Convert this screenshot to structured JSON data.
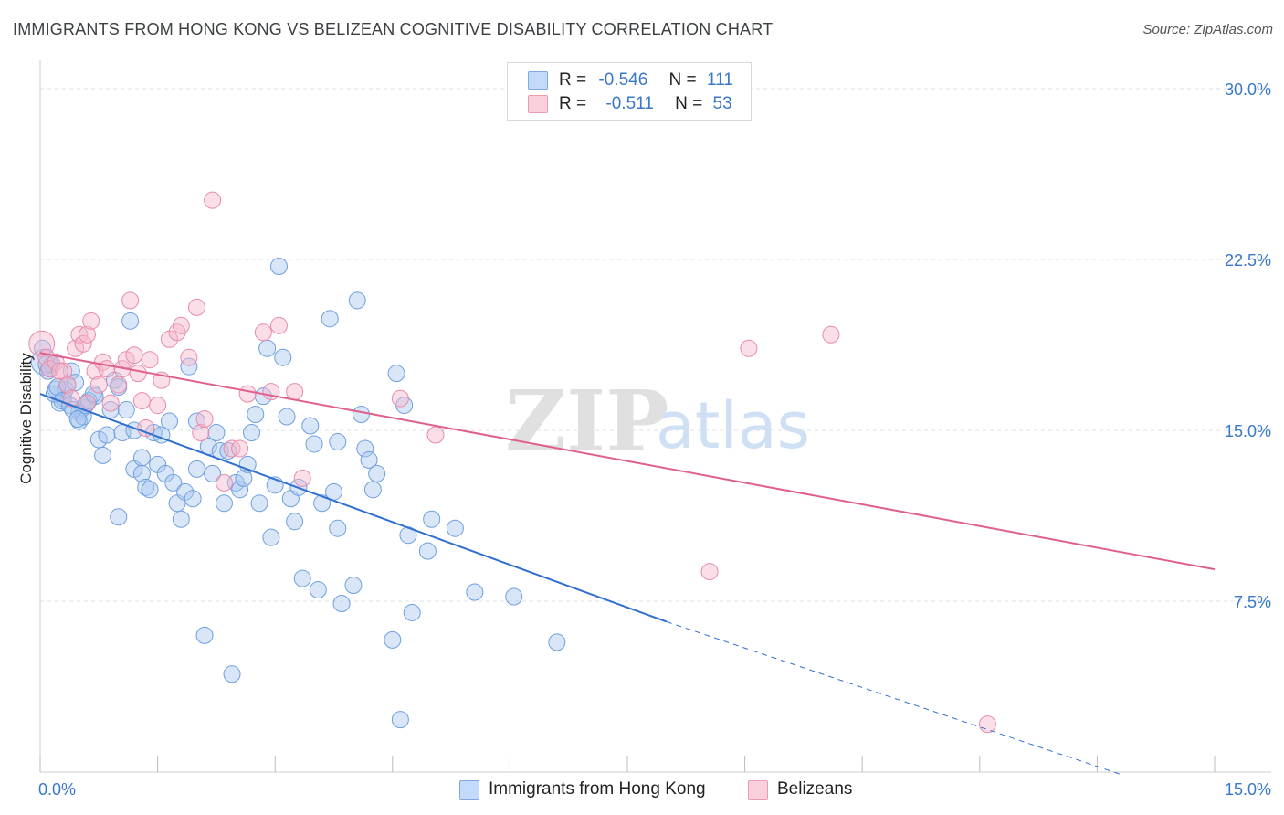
{
  "title": "IMMIGRANTS FROM HONG KONG VS BELIZEAN COGNITIVE DISABILITY CORRELATION CHART",
  "source": "Source: ZipAtlas.com",
  "watermark": {
    "zip": "ZIP",
    "atlas": "atlas"
  },
  "legend": {
    "rows": [
      {
        "r_label": "R =",
        "r_value": "-0.546",
        "n_label": "N =",
        "n_value": "111",
        "color": "#a9c8f0"
      },
      {
        "r_label": "R =",
        "r_value": "-0.511",
        "n_label": "N =",
        "n_value": "53",
        "color": "#f5b8cb"
      }
    ]
  },
  "bottom_legend": {
    "series1": "Immigrants from Hong Kong",
    "series2": "Belizeans"
  },
  "chart_data": {
    "type": "scatter",
    "title": "IMMIGRANTS FROM HONG KONG VS BELIZEAN COGNITIVE DISABILITY CORRELATION CHART",
    "xlabel": "",
    "ylabel": "Cognitive Disability",
    "xlim": [
      0,
      15
    ],
    "ylim": [
      0,
      30
    ],
    "x_tick_labels": [
      "0.0%",
      "15.0%"
    ],
    "y_tick_labels": [
      "7.5%",
      "15.0%",
      "22.5%",
      "30.0%"
    ],
    "y_ticks": [
      7.5,
      15.0,
      22.5,
      30.0
    ],
    "grid": true,
    "legend_position": "top-center",
    "colors": {
      "blue": "#4a86d8",
      "blue_fill": "#a9c8f0",
      "pink": "#e56b96",
      "pink_fill": "#f5b8cb"
    },
    "series": [
      {
        "name": "Immigrants from Hong Kong",
        "color": "#4a86d8",
        "trend": {
          "x": [
            0,
            8.0
          ],
          "y": [
            16.6,
            6.6
          ],
          "dashed_to": [
            13.8,
            -0.1
          ]
        },
        "points": [
          [
            0.05,
            18.0
          ],
          [
            0.1,
            17.6
          ],
          [
            0.15,
            17.9
          ],
          [
            0.2,
            16.8
          ],
          [
            0.25,
            16.2
          ],
          [
            0.3,
            16.4
          ],
          [
            0.32,
            16.8
          ],
          [
            0.35,
            17.0
          ],
          [
            0.4,
            17.6
          ],
          [
            0.45,
            17.1
          ],
          [
            0.5,
            15.8
          ],
          [
            0.5,
            15.4
          ],
          [
            0.55,
            16.0
          ],
          [
            0.55,
            15.6
          ],
          [
            0.6,
            16.2
          ],
          [
            0.7,
            16.5
          ],
          [
            0.75,
            14.6
          ],
          [
            0.8,
            13.9
          ],
          [
            0.85,
            14.8
          ],
          [
            0.9,
            15.9
          ],
          [
            0.95,
            17.2
          ],
          [
            1.0,
            16.9
          ],
          [
            1.0,
            11.2
          ],
          [
            1.05,
            14.9
          ],
          [
            1.1,
            15.9
          ],
          [
            1.15,
            19.8
          ],
          [
            1.2,
            13.3
          ],
          [
            1.2,
            15.0
          ],
          [
            1.3,
            13.1
          ],
          [
            1.3,
            13.8
          ],
          [
            1.35,
            12.5
          ],
          [
            1.4,
            12.4
          ],
          [
            1.45,
            14.9
          ],
          [
            1.5,
            13.5
          ],
          [
            1.55,
            14.8
          ],
          [
            1.6,
            13.1
          ],
          [
            1.65,
            15.4
          ],
          [
            1.7,
            12.7
          ],
          [
            1.75,
            11.8
          ],
          [
            1.8,
            11.1
          ],
          [
            1.85,
            12.3
          ],
          [
            1.9,
            17.8
          ],
          [
            1.95,
            12.0
          ],
          [
            2.0,
            15.4
          ],
          [
            2.0,
            13.3
          ],
          [
            2.1,
            6.0
          ],
          [
            2.15,
            14.3
          ],
          [
            2.2,
            13.1
          ],
          [
            2.25,
            14.9
          ],
          [
            2.3,
            14.1
          ],
          [
            2.35,
            11.8
          ],
          [
            2.4,
            14.1
          ],
          [
            2.45,
            4.3
          ],
          [
            2.5,
            12.7
          ],
          [
            2.55,
            12.4
          ],
          [
            2.6,
            12.9
          ],
          [
            2.65,
            13.5
          ],
          [
            2.7,
            14.9
          ],
          [
            2.75,
            15.7
          ],
          [
            2.8,
            11.8
          ],
          [
            2.85,
            16.5
          ],
          [
            2.9,
            18.6
          ],
          [
            2.95,
            10.3
          ],
          [
            3.0,
            12.6
          ],
          [
            3.05,
            22.2
          ],
          [
            3.1,
            18.2
          ],
          [
            3.15,
            15.6
          ],
          [
            3.2,
            12.0
          ],
          [
            3.25,
            11.0
          ],
          [
            3.3,
            12.5
          ],
          [
            3.35,
            8.5
          ],
          [
            3.45,
            15.2
          ],
          [
            3.5,
            14.4
          ],
          [
            3.55,
            8.0
          ],
          [
            3.6,
            11.8
          ],
          [
            3.7,
            19.9
          ],
          [
            3.75,
            12.3
          ],
          [
            3.8,
            14.5
          ],
          [
            3.8,
            10.7
          ],
          [
            3.85,
            7.4
          ],
          [
            4.0,
            8.2
          ],
          [
            4.05,
            20.7
          ],
          [
            4.1,
            15.7
          ],
          [
            4.15,
            14.2
          ],
          [
            4.2,
            13.7
          ],
          [
            4.25,
            12.4
          ],
          [
            4.3,
            13.1
          ],
          [
            4.5,
            5.8
          ],
          [
            4.55,
            17.5
          ],
          [
            4.6,
            2.3
          ],
          [
            4.65,
            16.1
          ],
          [
            4.7,
            10.4
          ],
          [
            4.75,
            7.0
          ],
          [
            4.95,
            9.7
          ],
          [
            5.0,
            11.1
          ],
          [
            5.3,
            10.7
          ],
          [
            5.55,
            7.9
          ],
          [
            6.05,
            7.7
          ],
          [
            6.6,
            5.7
          ],
          [
            0.03,
            18.6
          ],
          [
            0.08,
            17.9
          ],
          [
            0.12,
            17.7
          ],
          [
            0.18,
            16.6
          ],
          [
            0.22,
            16.9
          ],
          [
            0.28,
            16.3
          ],
          [
            0.38,
            16.1
          ],
          [
            0.42,
            15.9
          ],
          [
            0.48,
            15.5
          ],
          [
            0.58,
            16.1
          ],
          [
            0.62,
            16.3
          ],
          [
            0.68,
            16.6
          ]
        ]
      },
      {
        "name": "Belizeans",
        "color": "#e56b96",
        "trend": {
          "x": [
            0,
            15
          ],
          "y": [
            18.4,
            8.9
          ]
        },
        "points": [
          [
            0.02,
            18.8
          ],
          [
            0.08,
            18.2
          ],
          [
            0.12,
            17.7
          ],
          [
            0.2,
            18.0
          ],
          [
            0.3,
            17.6
          ],
          [
            0.35,
            17.0
          ],
          [
            0.4,
            16.4
          ],
          [
            0.45,
            18.6
          ],
          [
            0.5,
            19.2
          ],
          [
            0.55,
            18.8
          ],
          [
            0.6,
            16.2
          ],
          [
            0.7,
            17.6
          ],
          [
            0.75,
            17.0
          ],
          [
            0.8,
            18.0
          ],
          [
            0.85,
            17.7
          ],
          [
            0.9,
            16.2
          ],
          [
            1.0,
            17.0
          ],
          [
            1.05,
            17.7
          ],
          [
            1.1,
            18.1
          ],
          [
            1.2,
            18.3
          ],
          [
            1.25,
            17.5
          ],
          [
            1.3,
            16.3
          ],
          [
            1.35,
            15.1
          ],
          [
            1.4,
            18.1
          ],
          [
            1.5,
            16.1
          ],
          [
            1.55,
            17.2
          ],
          [
            1.65,
            19.0
          ],
          [
            1.75,
            19.3
          ],
          [
            1.8,
            19.6
          ],
          [
            1.9,
            18.2
          ],
          [
            2.0,
            20.4
          ],
          [
            2.05,
            14.9
          ],
          [
            2.1,
            15.5
          ],
          [
            2.2,
            25.1
          ],
          [
            2.35,
            12.7
          ],
          [
            2.45,
            14.2
          ],
          [
            2.55,
            14.2
          ],
          [
            2.65,
            16.6
          ],
          [
            2.85,
            19.3
          ],
          [
            2.95,
            16.7
          ],
          [
            3.05,
            19.6
          ],
          [
            3.25,
            16.7
          ],
          [
            3.35,
            12.9
          ],
          [
            4.6,
            16.4
          ],
          [
            5.05,
            14.8
          ],
          [
            8.55,
            8.8
          ],
          [
            9.05,
            18.6
          ],
          [
            10.1,
            19.2
          ],
          [
            12.1,
            2.1
          ],
          [
            0.6,
            19.2
          ],
          [
            1.15,
            20.7
          ],
          [
            0.25,
            17.6
          ],
          [
            0.65,
            19.8
          ]
        ]
      }
    ]
  }
}
